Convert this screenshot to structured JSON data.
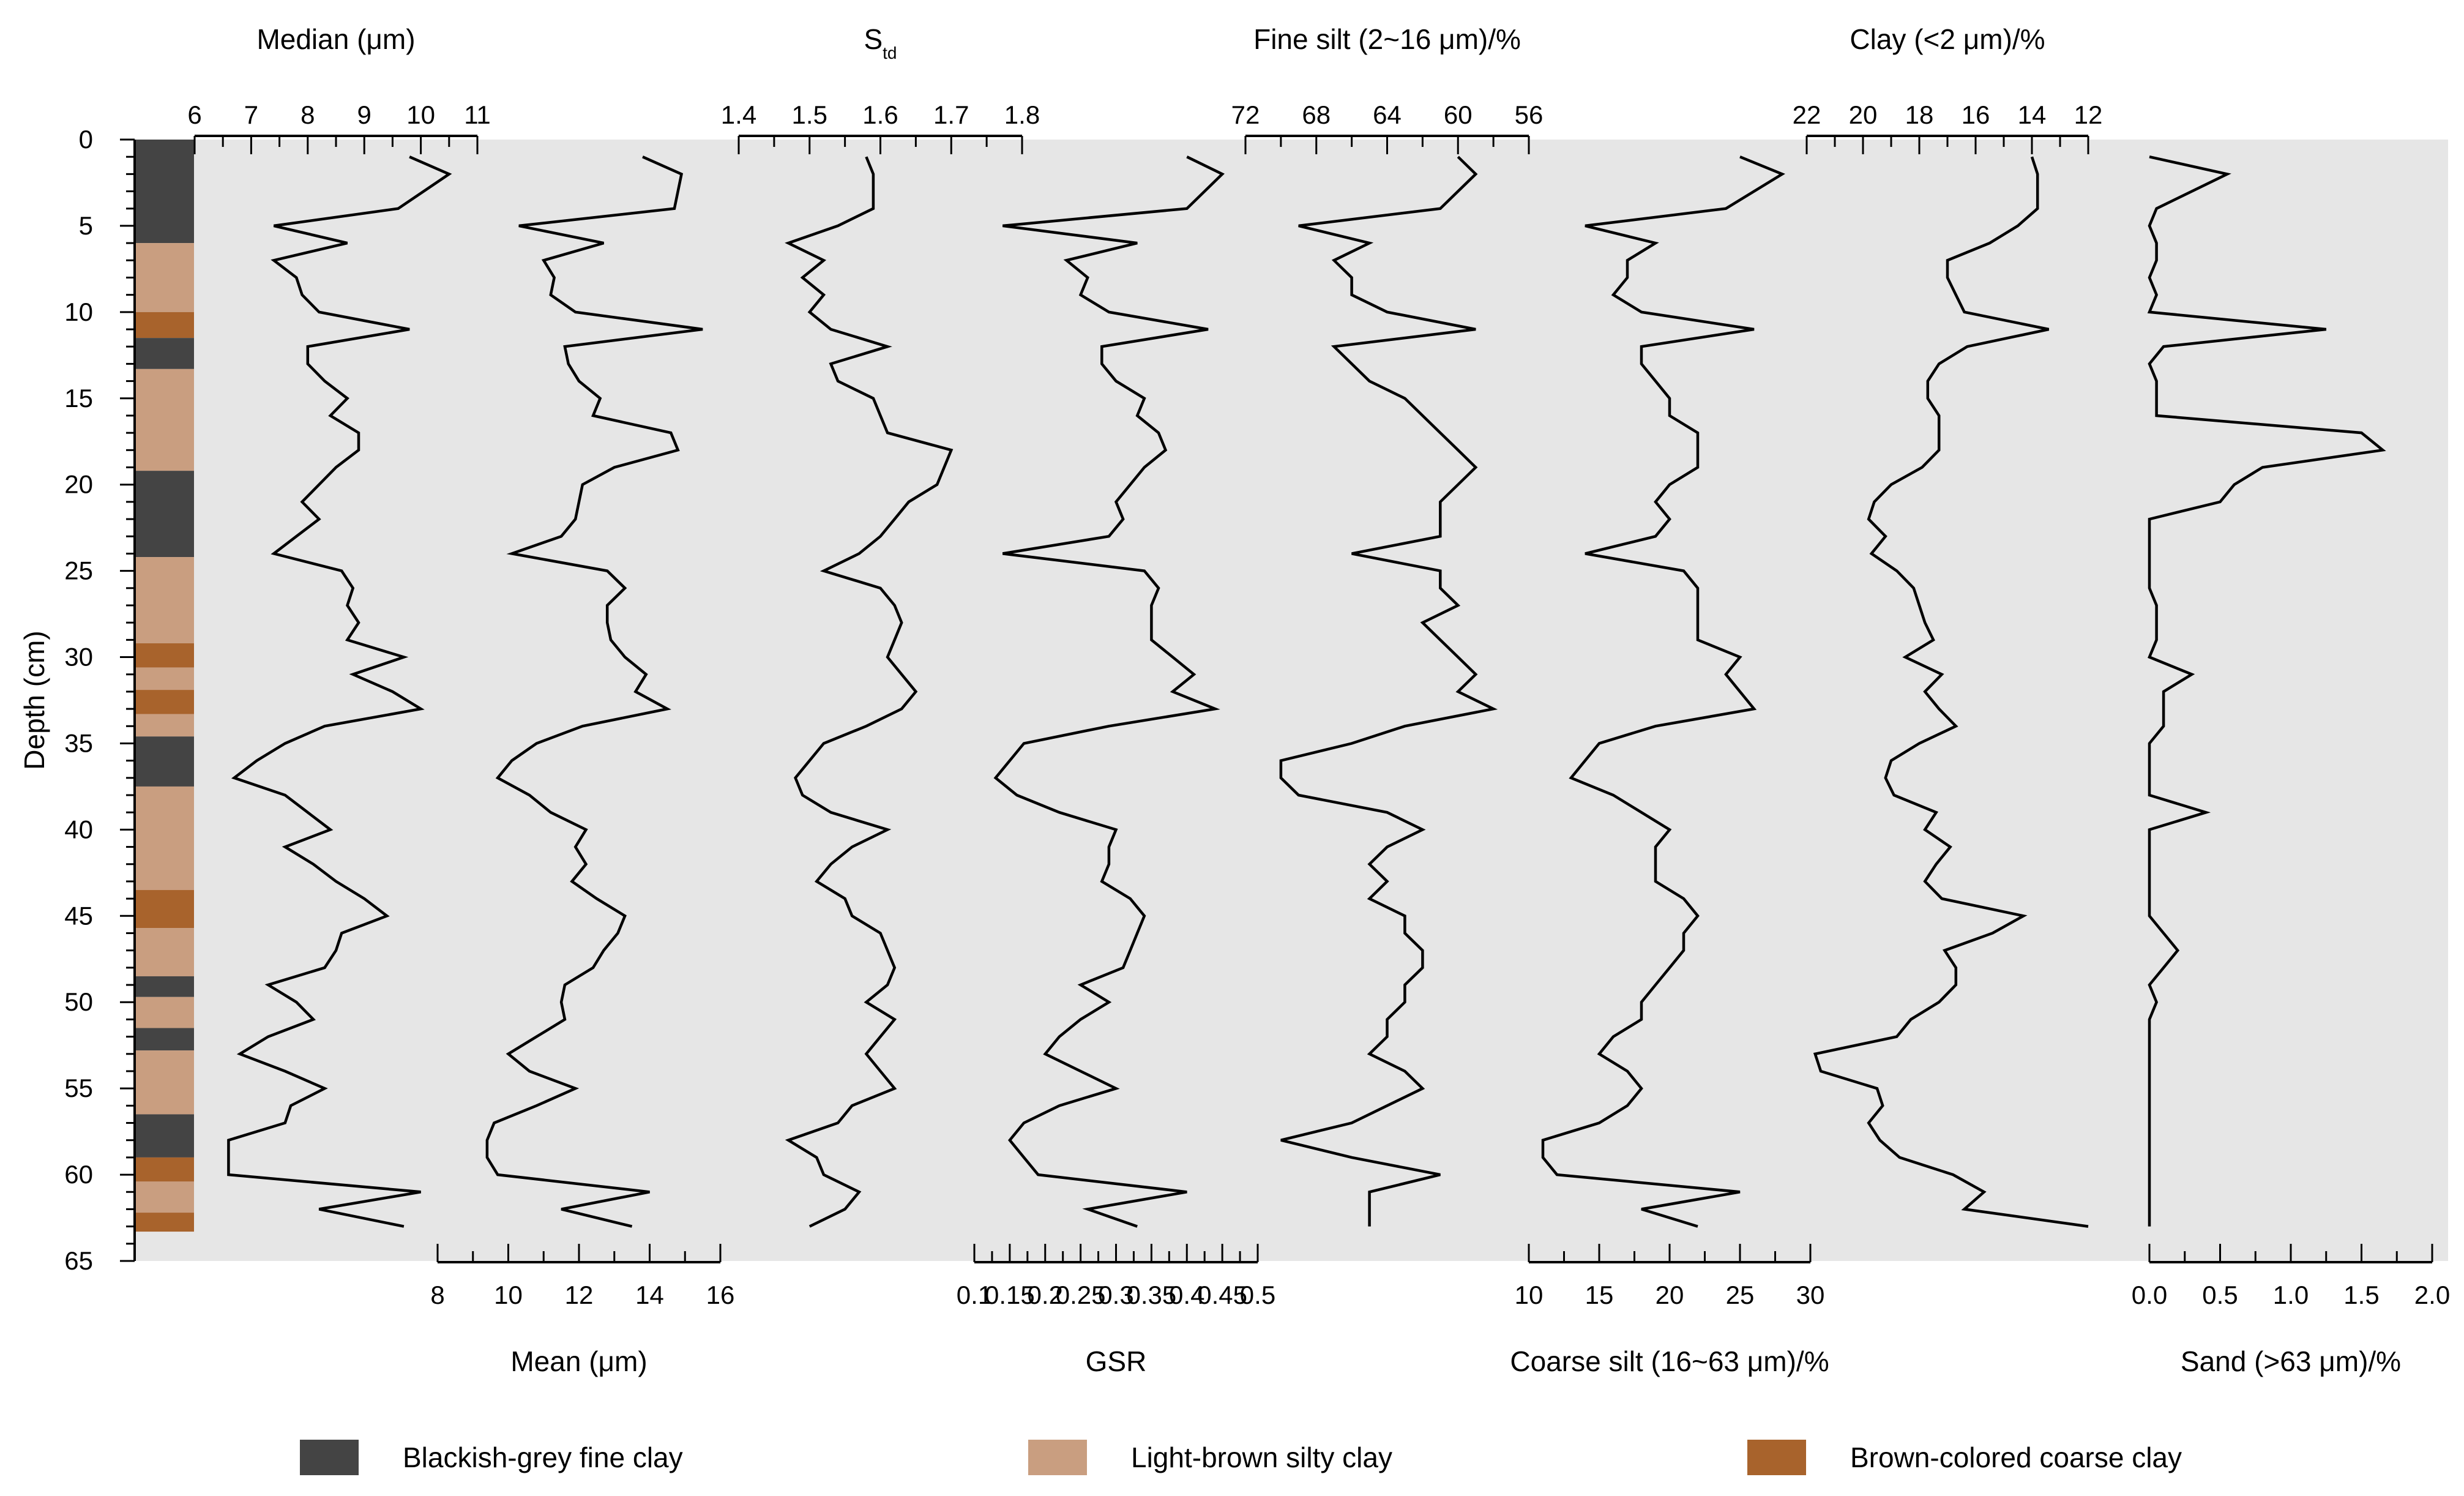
{
  "chart_data": {
    "type": "line",
    "orientation": "depth-profile",
    "depth_axis": {
      "label": "Depth (cm)",
      "range": [
        0,
        65
      ],
      "ticks": [
        0,
        5,
        10,
        15,
        20,
        25,
        30,
        35,
        40,
        45,
        50,
        55,
        60,
        65
      ]
    },
    "depth": [
      1,
      2,
      4,
      5,
      6,
      7,
      8,
      9,
      10,
      11,
      12,
      13,
      14,
      15,
      16,
      17,
      18,
      19,
      20,
      21,
      22,
      23,
      24,
      25,
      26,
      27,
      28,
      29,
      30,
      31,
      32,
      33,
      34,
      35,
      36,
      37,
      38,
      39,
      40,
      41,
      42,
      43,
      44,
      45,
      46,
      47,
      48,
      49,
      50,
      51,
      52,
      53,
      54,
      55,
      56,
      57,
      58,
      59,
      60,
      61,
      62,
      63
    ],
    "series": [
      {
        "name": "Median (μm)",
        "axis": "top",
        "axis_label": "Median (μm)",
        "reversed": false,
        "range": [
          6,
          11
        ],
        "ticks": [
          "6",
          "7",
          "8",
          "9",
          "10",
          "11"
        ],
        "values": [
          9.8,
          10.5,
          9.6,
          7.4,
          8.7,
          7.4,
          7.8,
          7.9,
          8.2,
          9.8,
          8.0,
          8.0,
          8.3,
          8.7,
          8.4,
          8.9,
          8.9,
          8.5,
          8.2,
          7.9,
          8.2,
          7.8,
          7.4,
          8.6,
          8.8,
          8.7,
          8.9,
          8.7,
          9.7,
          8.8,
          9.5,
          10.0,
          8.3,
          7.6,
          7.1,
          6.7,
          7.6,
          8.0,
          8.4,
          7.6,
          8.1,
          8.5,
          9.0,
          9.4,
          8.6,
          8.5,
          8.3,
          7.3,
          7.8,
          8.1,
          7.3,
          6.8,
          7.6,
          8.3,
          7.7,
          7.6,
          6.6,
          6.6,
          6.6,
          10.0,
          8.2,
          9.7
        ]
      },
      {
        "name": "Mean (μm)",
        "axis": "bottom",
        "axis_label": "Mean (μm)",
        "reversed": false,
        "range": [
          8,
          16
        ],
        "ticks": [
          "8",
          "10",
          "12",
          "14",
          "16"
        ],
        "values": [
          13.8,
          14.9,
          14.7,
          10.3,
          12.7,
          11.0,
          11.3,
          11.2,
          11.9,
          15.5,
          11.6,
          11.7,
          12.0,
          12.6,
          12.4,
          14.6,
          14.8,
          13.0,
          12.1,
          12.0,
          11.9,
          11.5,
          10.1,
          12.8,
          13.3,
          12.8,
          12.8,
          12.9,
          13.3,
          13.9,
          13.6,
          14.5,
          12.1,
          10.8,
          10.1,
          9.7,
          10.6,
          11.2,
          12.2,
          11.9,
          12.2,
          11.8,
          12.5,
          13.3,
          13.1,
          12.7,
          12.4,
          11.6,
          11.5,
          11.6,
          10.8,
          10.0,
          10.6,
          11.9,
          10.8,
          9.6,
          9.4,
          9.4,
          9.7,
          14.0,
          11.5,
          13.5
        ]
      },
      {
        "name": "Std",
        "axis": "top",
        "axis_label": "S",
        "axis_label_sub": "td",
        "reversed": false,
        "range": [
          1.4,
          1.8
        ],
        "ticks": [
          "1.4",
          "1.5",
          "1.6",
          "1.7",
          "1.8"
        ],
        "values": [
          1.58,
          1.59,
          1.59,
          1.54,
          1.47,
          1.52,
          1.49,
          1.52,
          1.5,
          1.53,
          1.61,
          1.53,
          1.54,
          1.59,
          1.6,
          1.61,
          1.7,
          1.69,
          1.68,
          1.64,
          1.62,
          1.6,
          1.57,
          1.52,
          1.6,
          1.62,
          1.63,
          1.62,
          1.61,
          1.63,
          1.65,
          1.63,
          1.58,
          1.52,
          1.5,
          1.48,
          1.49,
          1.53,
          1.61,
          1.56,
          1.53,
          1.51,
          1.55,
          1.56,
          1.6,
          1.61,
          1.62,
          1.61,
          1.58,
          1.62,
          1.6,
          1.58,
          1.6,
          1.62,
          1.56,
          1.54,
          1.47,
          1.51,
          1.52,
          1.57,
          1.55,
          1.5
        ]
      },
      {
        "name": "GSR",
        "axis": "bottom",
        "axis_label": "GSR",
        "reversed": false,
        "range": [
          0.1,
          0.5
        ],
        "ticks": [
          "0.1",
          "0.15",
          "0.2",
          "0.25",
          "0.3",
          "0.35",
          "0.4",
          "0.45",
          "0.5"
        ],
        "values": [
          0.4,
          0.45,
          0.4,
          0.14,
          0.33,
          0.23,
          0.26,
          0.25,
          0.29,
          0.43,
          0.28,
          0.28,
          0.3,
          0.34,
          0.33,
          0.36,
          0.37,
          0.34,
          0.32,
          0.3,
          0.31,
          0.29,
          0.14,
          0.34,
          0.36,
          0.35,
          0.35,
          0.35,
          0.38,
          0.41,
          0.38,
          0.44,
          0.29,
          0.17,
          0.15,
          0.13,
          0.16,
          0.22,
          0.3,
          0.29,
          0.29,
          0.28,
          0.32,
          0.34,
          0.33,
          0.32,
          0.31,
          0.25,
          0.29,
          0.25,
          0.22,
          0.2,
          0.25,
          0.3,
          0.22,
          0.17,
          0.15,
          0.17,
          0.19,
          0.4,
          0.26,
          0.33
        ]
      },
      {
        "name": "Fine silt (2~16 μm)/%",
        "axis": "top",
        "axis_label": "Fine silt (2~16 μm)/%",
        "reversed": true,
        "range": [
          72,
          56
        ],
        "ticks": [
          "72",
          "68",
          "64",
          "60",
          "56"
        ],
        "values": [
          60,
          59,
          61,
          69,
          65,
          67,
          66,
          66,
          64,
          59,
          67,
          66,
          65,
          63,
          62,
          61,
          60,
          59,
          60,
          61,
          61,
          61,
          66,
          61,
          61,
          60,
          62,
          61,
          60,
          59,
          60,
          58,
          63,
          66,
          70,
          70,
          69,
          64,
          62,
          64,
          65,
          64,
          65,
          63,
          63,
          62,
          62,
          63,
          63,
          64,
          64,
          65,
          63,
          62,
          64,
          66,
          70,
          66,
          61,
          65,
          65,
          65
        ]
      },
      {
        "name": "Coarse silt (16~63 μm)/%",
        "axis": "bottom",
        "axis_label": "Coarse silt (16~63 μm)/%",
        "reversed": false,
        "range": [
          10,
          30
        ],
        "ticks": [
          "10",
          "15",
          "20",
          "25",
          "30"
        ],
        "values": [
          25,
          28,
          24,
          14,
          19,
          17,
          17,
          16,
          18,
          26,
          18,
          18,
          19,
          20,
          20,
          22,
          22,
          22,
          20,
          19,
          20,
          19,
          14,
          21,
          22,
          22,
          22,
          22,
          25,
          24,
          25,
          26,
          19,
          15,
          14,
          13,
          16,
          18,
          20,
          19,
          19,
          19,
          21,
          22,
          21,
          21,
          20,
          19,
          18,
          18,
          16,
          15,
          17,
          18,
          17,
          15,
          11,
          11,
          12,
          25,
          18,
          22
        ]
      },
      {
        "name": "Clay (<2 μm)/%",
        "axis": "top",
        "axis_label": "Clay (<2 μm)/%",
        "reversed": true,
        "range": [
          22,
          12
        ],
        "ticks": [
          "22",
          "20",
          "18",
          "16",
          "14",
          "12"
        ],
        "values": [
          14.0,
          13.8,
          13.8,
          14.5,
          15.5,
          17.0,
          17.0,
          16.7,
          16.4,
          13.4,
          16.3,
          17.3,
          17.7,
          17.7,
          17.3,
          17.3,
          17.3,
          17.9,
          19.0,
          19.6,
          19.8,
          19.2,
          19.7,
          18.8,
          18.2,
          18.0,
          17.8,
          17.5,
          18.5,
          17.2,
          17.8,
          17.3,
          16.7,
          18.0,
          19.0,
          19.2,
          18.9,
          17.4,
          17.8,
          16.9,
          17.4,
          17.8,
          17.2,
          14.3,
          15.4,
          17.1,
          16.7,
          16.7,
          17.3,
          18.3,
          18.8,
          21.7,
          21.5,
          19.5,
          19.3,
          19.8,
          19.4,
          18.7,
          16.8,
          15.7,
          16.4,
          12.0
        ]
      },
      {
        "name": "Sand (>63 μm)/%",
        "axis": "bottom",
        "axis_label": "Sand (>63 μm)/%",
        "reversed": false,
        "range": [
          0,
          2.0
        ],
        "ticks": [
          "0.0",
          "0.5",
          "1.0",
          "1.5",
          "2.0"
        ],
        "values": [
          0.0,
          0.55,
          0.05,
          0.0,
          0.05,
          0.05,
          0.0,
          0.05,
          0.0,
          1.25,
          0.1,
          0.0,
          0.05,
          0.05,
          0.05,
          1.5,
          1.65,
          0.8,
          0.6,
          0.5,
          0.0,
          0.0,
          0.0,
          0.0,
          0.0,
          0.05,
          0.05,
          0.05,
          0.0,
          0.3,
          0.1,
          0.1,
          0.1,
          0.0,
          0.0,
          0.0,
          0.0,
          0.4,
          0.0,
          0.0,
          0.0,
          0.0,
          0.0,
          0.0,
          0.1,
          0.2,
          0.1,
          0.0,
          0.05,
          0.0,
          0.0,
          0.0,
          0.0,
          0.0,
          0.0,
          0.0,
          0.0,
          0.0,
          0.0,
          0.0,
          0.0,
          0.0
        ]
      }
    ],
    "lithology_column": [
      {
        "from": 0,
        "to": 6,
        "type": "blackish"
      },
      {
        "from": 6,
        "to": 10,
        "type": "light"
      },
      {
        "from": 10,
        "to": 11.5,
        "type": "brown"
      },
      {
        "from": 11.5,
        "to": 13.3,
        "type": "blackish"
      },
      {
        "from": 13.3,
        "to": 19.2,
        "type": "light"
      },
      {
        "from": 19.2,
        "to": 24.2,
        "type": "blackish"
      },
      {
        "from": 24.2,
        "to": 29.2,
        "type": "light"
      },
      {
        "from": 29.2,
        "to": 30.6,
        "type": "brown"
      },
      {
        "from": 30.6,
        "to": 31.9,
        "type": "light"
      },
      {
        "from": 31.9,
        "to": 33.3,
        "type": "brown"
      },
      {
        "from": 33.3,
        "to": 34.6,
        "type": "light"
      },
      {
        "from": 34.6,
        "to": 37.5,
        "type": "blackish"
      },
      {
        "from": 37.5,
        "to": 43.5,
        "type": "light"
      },
      {
        "from": 43.5,
        "to": 45.7,
        "type": "brown"
      },
      {
        "from": 45.7,
        "to": 48.5,
        "type": "light"
      },
      {
        "from": 48.5,
        "to": 49.7,
        "type": "blackish"
      },
      {
        "from": 49.7,
        "to": 51.5,
        "type": "light"
      },
      {
        "from": 51.5,
        "to": 52.8,
        "type": "blackish"
      },
      {
        "from": 52.8,
        "to": 56.5,
        "type": "light"
      },
      {
        "from": 56.5,
        "to": 59.0,
        "type": "blackish"
      },
      {
        "from": 59.0,
        "to": 60.4,
        "type": "brown"
      },
      {
        "from": 60.4,
        "to": 62.2,
        "type": "light"
      },
      {
        "from": 62.2,
        "to": 63.3,
        "type": "brown"
      }
    ],
    "legend": [
      {
        "key": "blackish",
        "label": "Blackish-grey fine clay",
        "color": "#444444"
      },
      {
        "key": "light",
        "label": "Light-brown silty clay",
        "color": "#C99E80"
      },
      {
        "key": "brown",
        "label": "Brown-colored coarse clay",
        "color": "#A8632C"
      }
    ],
    "colors": {
      "panel_background": "#E6E6E6",
      "line": "#000000"
    }
  }
}
